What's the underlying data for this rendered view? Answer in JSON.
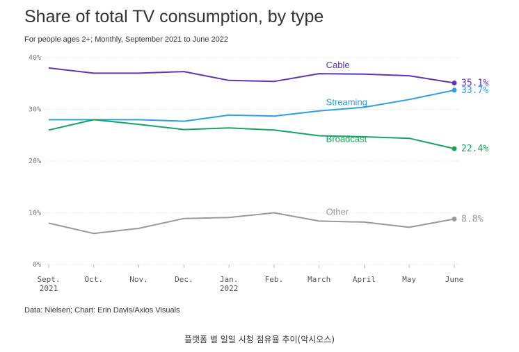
{
  "title": "Share of total TV consumption, by type",
  "subtitle": "For people ages 2+; Monthly, September 2021 to June 2022",
  "source": "Data: Nielsen; Chart: Erin Davis/Axios Visuals",
  "caption": "플랫폼 별 일일 시청 점유율 추이(악시오스)",
  "chart_data": {
    "type": "line",
    "x": [
      [
        "Sept.",
        "2021"
      ],
      [
        "Oct."
      ],
      [
        "Nov."
      ],
      [
        "Dec."
      ],
      [
        "Jan.",
        "2022"
      ],
      [
        "Feb."
      ],
      [
        "March"
      ],
      [
        "April"
      ],
      [
        "May"
      ],
      [
        "June"
      ]
    ],
    "yticks": [
      "0%",
      "10%",
      "20%",
      "30%",
      "40%"
    ],
    "ylim": [
      0,
      40
    ],
    "grid": true,
    "series": [
      {
        "name": "Cable",
        "color": "#5b36b5",
        "values": [
          38.0,
          37.0,
          37.0,
          37.3,
          35.6,
          35.4,
          36.9,
          36.8,
          36.5,
          35.1
        ],
        "end_label": "35.1%"
      },
      {
        "name": "Streaming",
        "color": "#2d9fe0",
        "values": [
          28.0,
          28.0,
          28.0,
          27.7,
          28.9,
          28.7,
          29.7,
          30.4,
          31.9,
          33.7
        ],
        "end_label": "33.7%"
      },
      {
        "name": "Broadcast",
        "color": "#17a55c",
        "values": [
          26.0,
          28.0,
          27.1,
          26.1,
          26.4,
          26.0,
          24.9,
          24.7,
          24.4,
          22.4
        ],
        "end_label": "22.4%"
      },
      {
        "name": "Other",
        "color": "#999999",
        "values": [
          8.0,
          6.0,
          7.0,
          8.9,
          9.1,
          10.0,
          8.4,
          8.2,
          7.2,
          8.8
        ],
        "end_label": "8.8%"
      }
    ]
  }
}
